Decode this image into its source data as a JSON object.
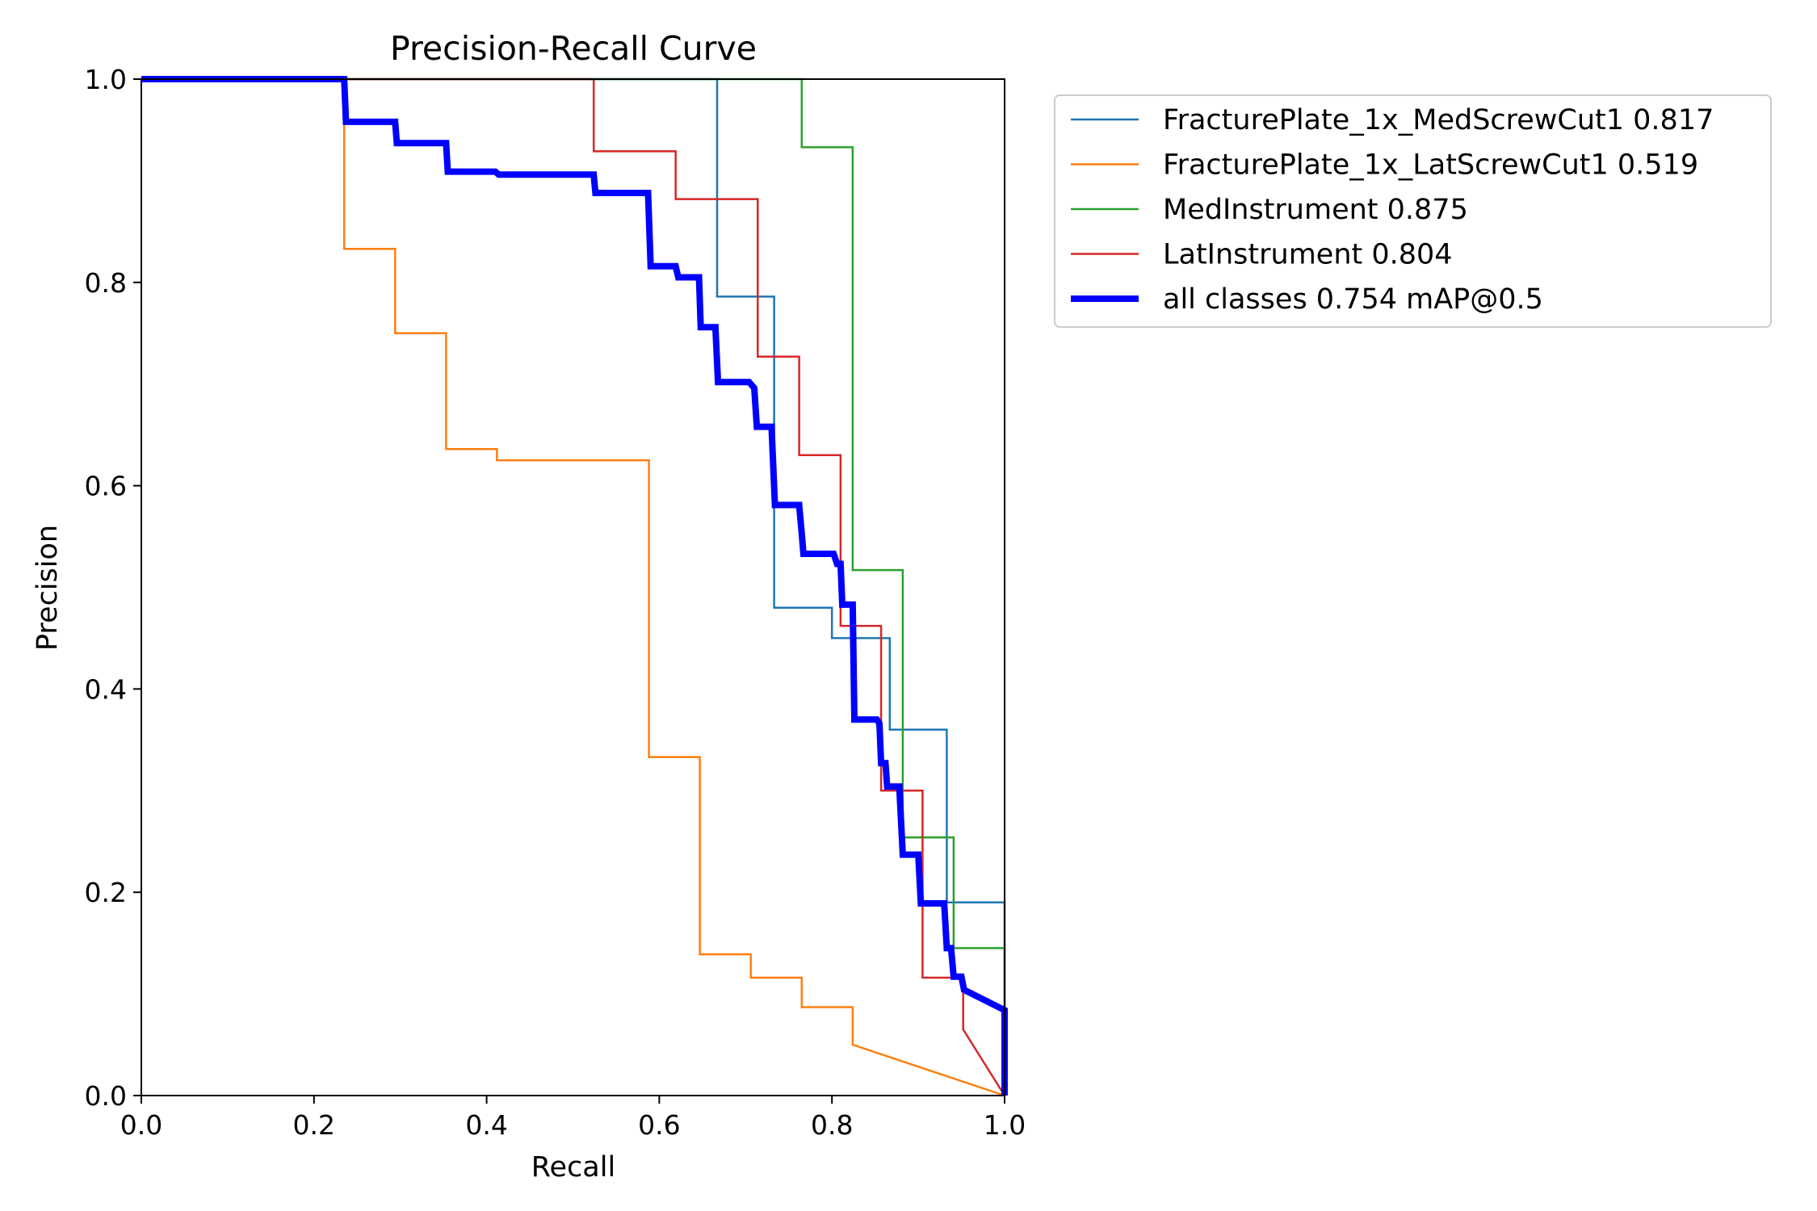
{
  "chart_data": {
    "type": "line",
    "title": "Precision-Recall Curve",
    "xlabel": "Recall",
    "ylabel": "Precision",
    "xlim": [
      0,
      1
    ],
    "ylim": [
      0,
      1
    ],
    "xticks": [
      "0.0",
      "0.2",
      "0.4",
      "0.6",
      "0.8",
      "1.0"
    ],
    "yticks": [
      "0.0",
      "0.2",
      "0.4",
      "0.6",
      "0.8",
      "1.0"
    ],
    "grid": false,
    "legend_position": "outside top-right",
    "series": [
      {
        "name": "FracturePlate_1x_MedScrewCut1 0.817",
        "color": "#1f77b4",
        "line_weight": "thin",
        "points": [
          [
            0,
            1
          ],
          [
            0.667,
            1
          ],
          [
            0.667,
            0.786
          ],
          [
            0.733,
            0.786
          ],
          [
            0.733,
            0.48
          ],
          [
            0.8,
            0.48
          ],
          [
            0.8,
            0.45
          ],
          [
            0.867,
            0.45
          ],
          [
            0.867,
            0.36
          ],
          [
            0.933,
            0.36
          ],
          [
            0.933,
            0.19
          ],
          [
            1.0,
            0.19
          ],
          [
            1.0,
            0
          ]
        ]
      },
      {
        "name": "FracturePlate_1x_LatScrewCut1 0.519",
        "color": "#ff7f0e",
        "line_weight": "thin",
        "points": [
          [
            0,
            1
          ],
          [
            0.235,
            1
          ],
          [
            0.235,
            0.833
          ],
          [
            0.294,
            0.833
          ],
          [
            0.294,
            0.75
          ],
          [
            0.353,
            0.75
          ],
          [
            0.353,
            0.636
          ],
          [
            0.412,
            0.636
          ],
          [
            0.412,
            0.625
          ],
          [
            0.588,
            0.625
          ],
          [
            0.588,
            0.333
          ],
          [
            0.647,
            0.333
          ],
          [
            0.647,
            0.139
          ],
          [
            0.706,
            0.139
          ],
          [
            0.706,
            0.116
          ],
          [
            0.765,
            0.116
          ],
          [
            0.765,
            0.087
          ],
          [
            0.824,
            0.087
          ],
          [
            0.824,
            0.05
          ],
          [
            1.0,
            0
          ]
        ]
      },
      {
        "name": "MedInstrument 0.875",
        "color": "#2ca02c",
        "line_weight": "thin",
        "points": [
          [
            0,
            1
          ],
          [
            0.765,
            1
          ],
          [
            0.765,
            0.933
          ],
          [
            0.824,
            0.933
          ],
          [
            0.824,
            0.517
          ],
          [
            0.882,
            0.517
          ],
          [
            0.882,
            0.254
          ],
          [
            0.941,
            0.254
          ],
          [
            0.941,
            0.145
          ],
          [
            1.0,
            0.145
          ],
          [
            1.0,
            0
          ]
        ]
      },
      {
        "name": "LatInstrument 0.804",
        "color": "#d62728",
        "line_weight": "thin",
        "points": [
          [
            0,
            1
          ],
          [
            0.524,
            1
          ],
          [
            0.524,
            0.929
          ],
          [
            0.619,
            0.929
          ],
          [
            0.619,
            0.882
          ],
          [
            0.714,
            0.882
          ],
          [
            0.714,
            0.727
          ],
          [
            0.762,
            0.727
          ],
          [
            0.762,
            0.63
          ],
          [
            0.81,
            0.63
          ],
          [
            0.81,
            0.462
          ],
          [
            0.857,
            0.462
          ],
          [
            0.857,
            0.3
          ],
          [
            0.905,
            0.3
          ],
          [
            0.905,
            0.116
          ],
          [
            0.952,
            0.116
          ],
          [
            0.952,
            0.065
          ],
          [
            1.0,
            0
          ]
        ]
      },
      {
        "name": "all classes 0.754 mAP@0.5",
        "color": "#0000ff",
        "line_weight": "thick",
        "points": [
          [
            0,
            1
          ],
          [
            0.235,
            1
          ],
          [
            0.237,
            0.958
          ],
          [
            0.294,
            0.958
          ],
          [
            0.296,
            0.937
          ],
          [
            0.353,
            0.937
          ],
          [
            0.355,
            0.909
          ],
          [
            0.41,
            0.909
          ],
          [
            0.414,
            0.906
          ],
          [
            0.524,
            0.906
          ],
          [
            0.526,
            0.888
          ],
          [
            0.587,
            0.888
          ],
          [
            0.59,
            0.816
          ],
          [
            0.619,
            0.816
          ],
          [
            0.622,
            0.805
          ],
          [
            0.646,
            0.805
          ],
          [
            0.648,
            0.756
          ],
          [
            0.665,
            0.756
          ],
          [
            0.668,
            0.702
          ],
          [
            0.704,
            0.702
          ],
          [
            0.71,
            0.696
          ],
          [
            0.713,
            0.658
          ],
          [
            0.73,
            0.658
          ],
          [
            0.734,
            0.581
          ],
          [
            0.762,
            0.581
          ],
          [
            0.765,
            0.553
          ],
          [
            0.767,
            0.533
          ],
          [
            0.802,
            0.533
          ],
          [
            0.806,
            0.523
          ],
          [
            0.81,
            0.523
          ],
          [
            0.812,
            0.483
          ],
          [
            0.824,
            0.483
          ],
          [
            0.826,
            0.37
          ],
          [
            0.852,
            0.37
          ],
          [
            0.855,
            0.366
          ],
          [
            0.857,
            0.327
          ],
          [
            0.862,
            0.327
          ],
          [
            0.864,
            0.304
          ],
          [
            0.878,
            0.304
          ],
          [
            0.882,
            0.237
          ],
          [
            0.9,
            0.237
          ],
          [
            0.903,
            0.189
          ],
          [
            0.93,
            0.189
          ],
          [
            0.933,
            0.145
          ],
          [
            0.938,
            0.145
          ],
          [
            0.941,
            0.117
          ],
          [
            0.95,
            0.117
          ],
          [
            0.953,
            0.104
          ],
          [
            1.0,
            0.084
          ],
          [
            1.0,
            0
          ]
        ]
      }
    ]
  }
}
